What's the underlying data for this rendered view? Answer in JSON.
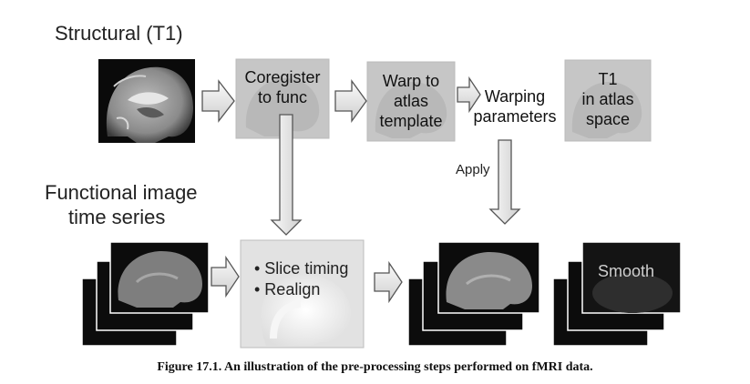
{
  "structural_heading": "Structural (T1)",
  "functional_heading_line1": "Functional image",
  "functional_heading_line2": "time series",
  "steps": {
    "coregister": {
      "line1": "Coregister",
      "line2": "to func"
    },
    "warp": {
      "line1": "Warp to",
      "line2": "atlas",
      "line3": "template"
    },
    "warping_params": {
      "line1": "Warping",
      "line2": "parameters"
    },
    "t1_atlas": {
      "line1": "T1",
      "line2": "in atlas",
      "line3": "space"
    },
    "slice_realign": {
      "item1": "• Slice timing",
      "item2": "• Realign"
    },
    "smooth": {
      "label": "Smooth"
    }
  },
  "apply_label": "Apply",
  "caption": "Figure 17.1. An illustration of the pre-processing steps performed on fMRI data.",
  "colors": {
    "arrow_fill": "#e8e8e8",
    "arrow_stroke": "#555555",
    "gray_box": "#c4c4c4",
    "dark_frame": "#111111"
  }
}
